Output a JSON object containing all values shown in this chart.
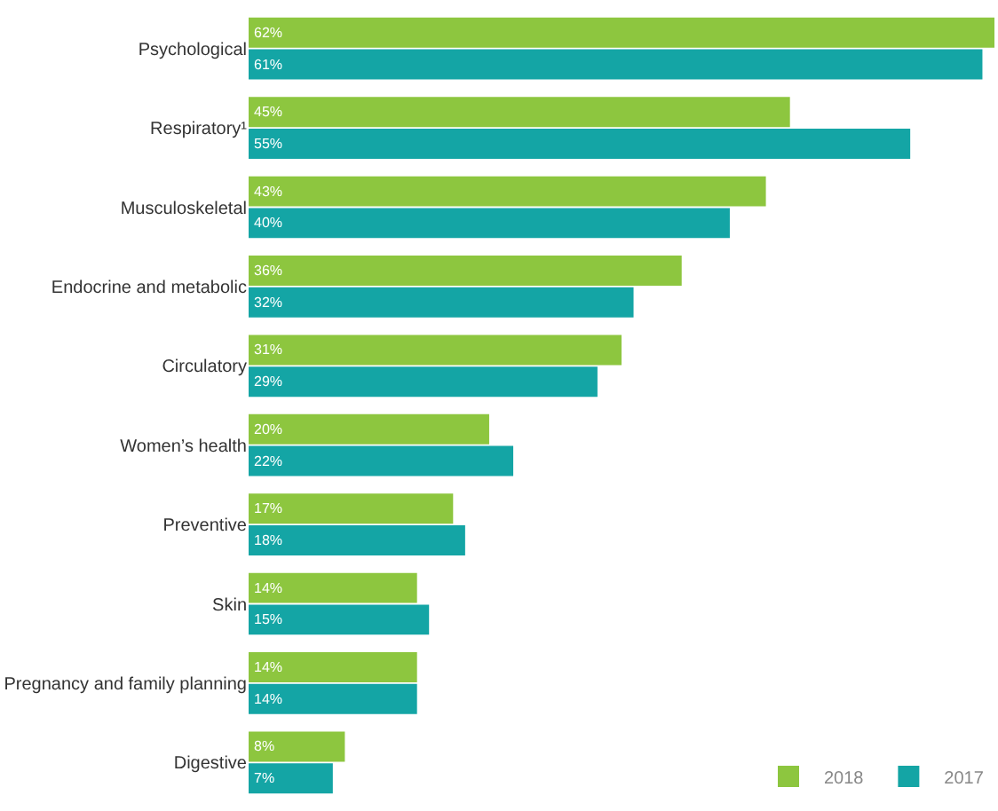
{
  "chart_data": {
    "type": "bar",
    "orientation": "horizontal",
    "legend": "bottom right",
    "tick_labels": "y",
    "categories": [
      "Psychological",
      "Respiratory¹",
      "Musculoskeletal",
      "Endocrine and metabolic",
      "Circulatory",
      "Women’s health",
      "Preventive",
      "Skin",
      "Pregnancy and family planning",
      "Digestive"
    ],
    "series": [
      {
        "name": "2018",
        "color": "#8dc63f",
        "values": [
          62,
          45,
          43,
          36,
          31,
          20,
          17,
          14,
          14,
          8
        ],
        "value_labels": [
          "62%",
          "45%",
          "43%",
          "36%",
          "31%",
          "20%",
          "17%",
          "14%",
          "14%",
          "8%"
        ]
      },
      {
        "name": "2017",
        "color": "#14a5a5",
        "values": [
          61,
          55,
          40,
          32,
          29,
          22,
          18,
          15,
          14,
          7
        ],
        "value_labels": [
          "61%",
          "55%",
          "40%",
          "32%",
          "29%",
          "22%",
          "18%",
          "15%",
          "14%",
          "7%"
        ]
      }
    ]
  }
}
